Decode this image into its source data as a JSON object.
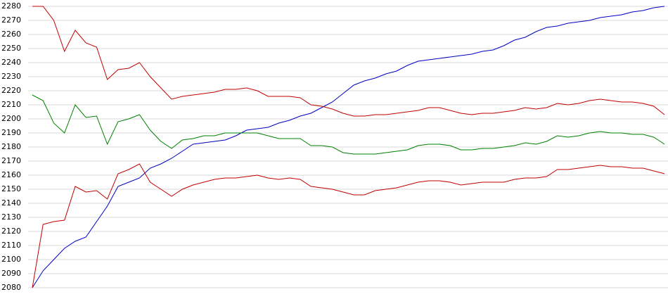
{
  "chart_data": {
    "type": "line",
    "ylim": [
      2080,
      2280
    ],
    "yticks": [
      2080,
      2090,
      2100,
      2110,
      2120,
      2130,
      2140,
      2150,
      2160,
      2170,
      2180,
      2190,
      2200,
      2210,
      2220,
      2230,
      2240,
      2250,
      2260,
      2270,
      2280
    ],
    "grid": true,
    "series": [
      {
        "color": "#0000c0",
        "values": [
          2080,
          2092,
          2100,
          2108,
          2113,
          2116,
          2127,
          2138,
          2152,
          2155,
          2158,
          2165,
          2168,
          2172,
          2177,
          2182,
          2183,
          2184,
          2185,
          2188,
          2192,
          2193,
          2194,
          2197,
          2199,
          2202,
          2204,
          2208,
          2212,
          2218,
          2224,
          2227,
          2229,
          2232,
          2234,
          2238,
          2241,
          2242,
          2243,
          2244,
          2245,
          2246,
          2248,
          2249,
          2252,
          2256,
          2258,
          2262,
          2265,
          2266,
          2268,
          2269,
          2270,
          2272,
          2273,
          2274,
          2276,
          2277,
          2279,
          2280
        ]
      },
      {
        "color": "#008000",
        "values": [
          2217,
          2213,
          2197,
          2190,
          2210,
          2201,
          2202,
          2182,
          2198,
          2200,
          2203,
          2192,
          2184,
          2179,
          2185,
          2186,
          2188,
          2188,
          2190,
          2190,
          2190,
          2190,
          2188,
          2186,
          2186,
          2186,
          2181,
          2181,
          2180,
          2176,
          2175,
          2175,
          2175,
          2176,
          2177,
          2178,
          2181,
          2182,
          2182,
          2181,
          2178,
          2178,
          2179,
          2179,
          2180,
          2181,
          2183,
          2182,
          2184,
          2188,
          2187,
          2188,
          2190,
          2191,
          2190,
          2190,
          2189,
          2189,
          2187,
          2182
        ]
      },
      {
        "color": "#c00000",
        "values": [
          2280,
          2280,
          2270,
          2248,
          2263,
          2254,
          2251,
          2228,
          2235,
          2236,
          2240,
          2230,
          2222,
          2214,
          2216,
          2217,
          2218,
          2219,
          2221,
          2221,
          2222,
          2220,
          2216,
          2216,
          2216,
          2215,
          2210,
          2209,
          2207,
          2204,
          2202,
          2202,
          2203,
          2203,
          2204,
          2205,
          2206,
          2208,
          2208,
          2206,
          2204,
          2203,
          2204,
          2204,
          2205,
          2206,
          2208,
          2207,
          2208,
          2211,
          2210,
          2211,
          2213,
          2214,
          2213,
          2212,
          2212,
          2211,
          2209,
          2203
        ]
      },
      {
        "color": "#c00000",
        "values": [
          2080,
          2125,
          2127,
          2128,
          2152,
          2148,
          2149,
          2143,
          2161,
          2164,
          2168,
          2155,
          2150,
          2145,
          2150,
          2153,
          2155,
          2157,
          2158,
          2158,
          2159,
          2160,
          2158,
          2157,
          2158,
          2157,
          2152,
          2151,
          2150,
          2148,
          2146,
          2146,
          2149,
          2150,
          2151,
          2153,
          2155,
          2156,
          2156,
          2155,
          2153,
          2154,
          2155,
          2155,
          2155,
          2157,
          2158,
          2158,
          2159,
          2164,
          2164,
          2165,
          2166,
          2167,
          2166,
          2166,
          2165,
          2165,
          2163,
          2161
        ]
      }
    ]
  }
}
